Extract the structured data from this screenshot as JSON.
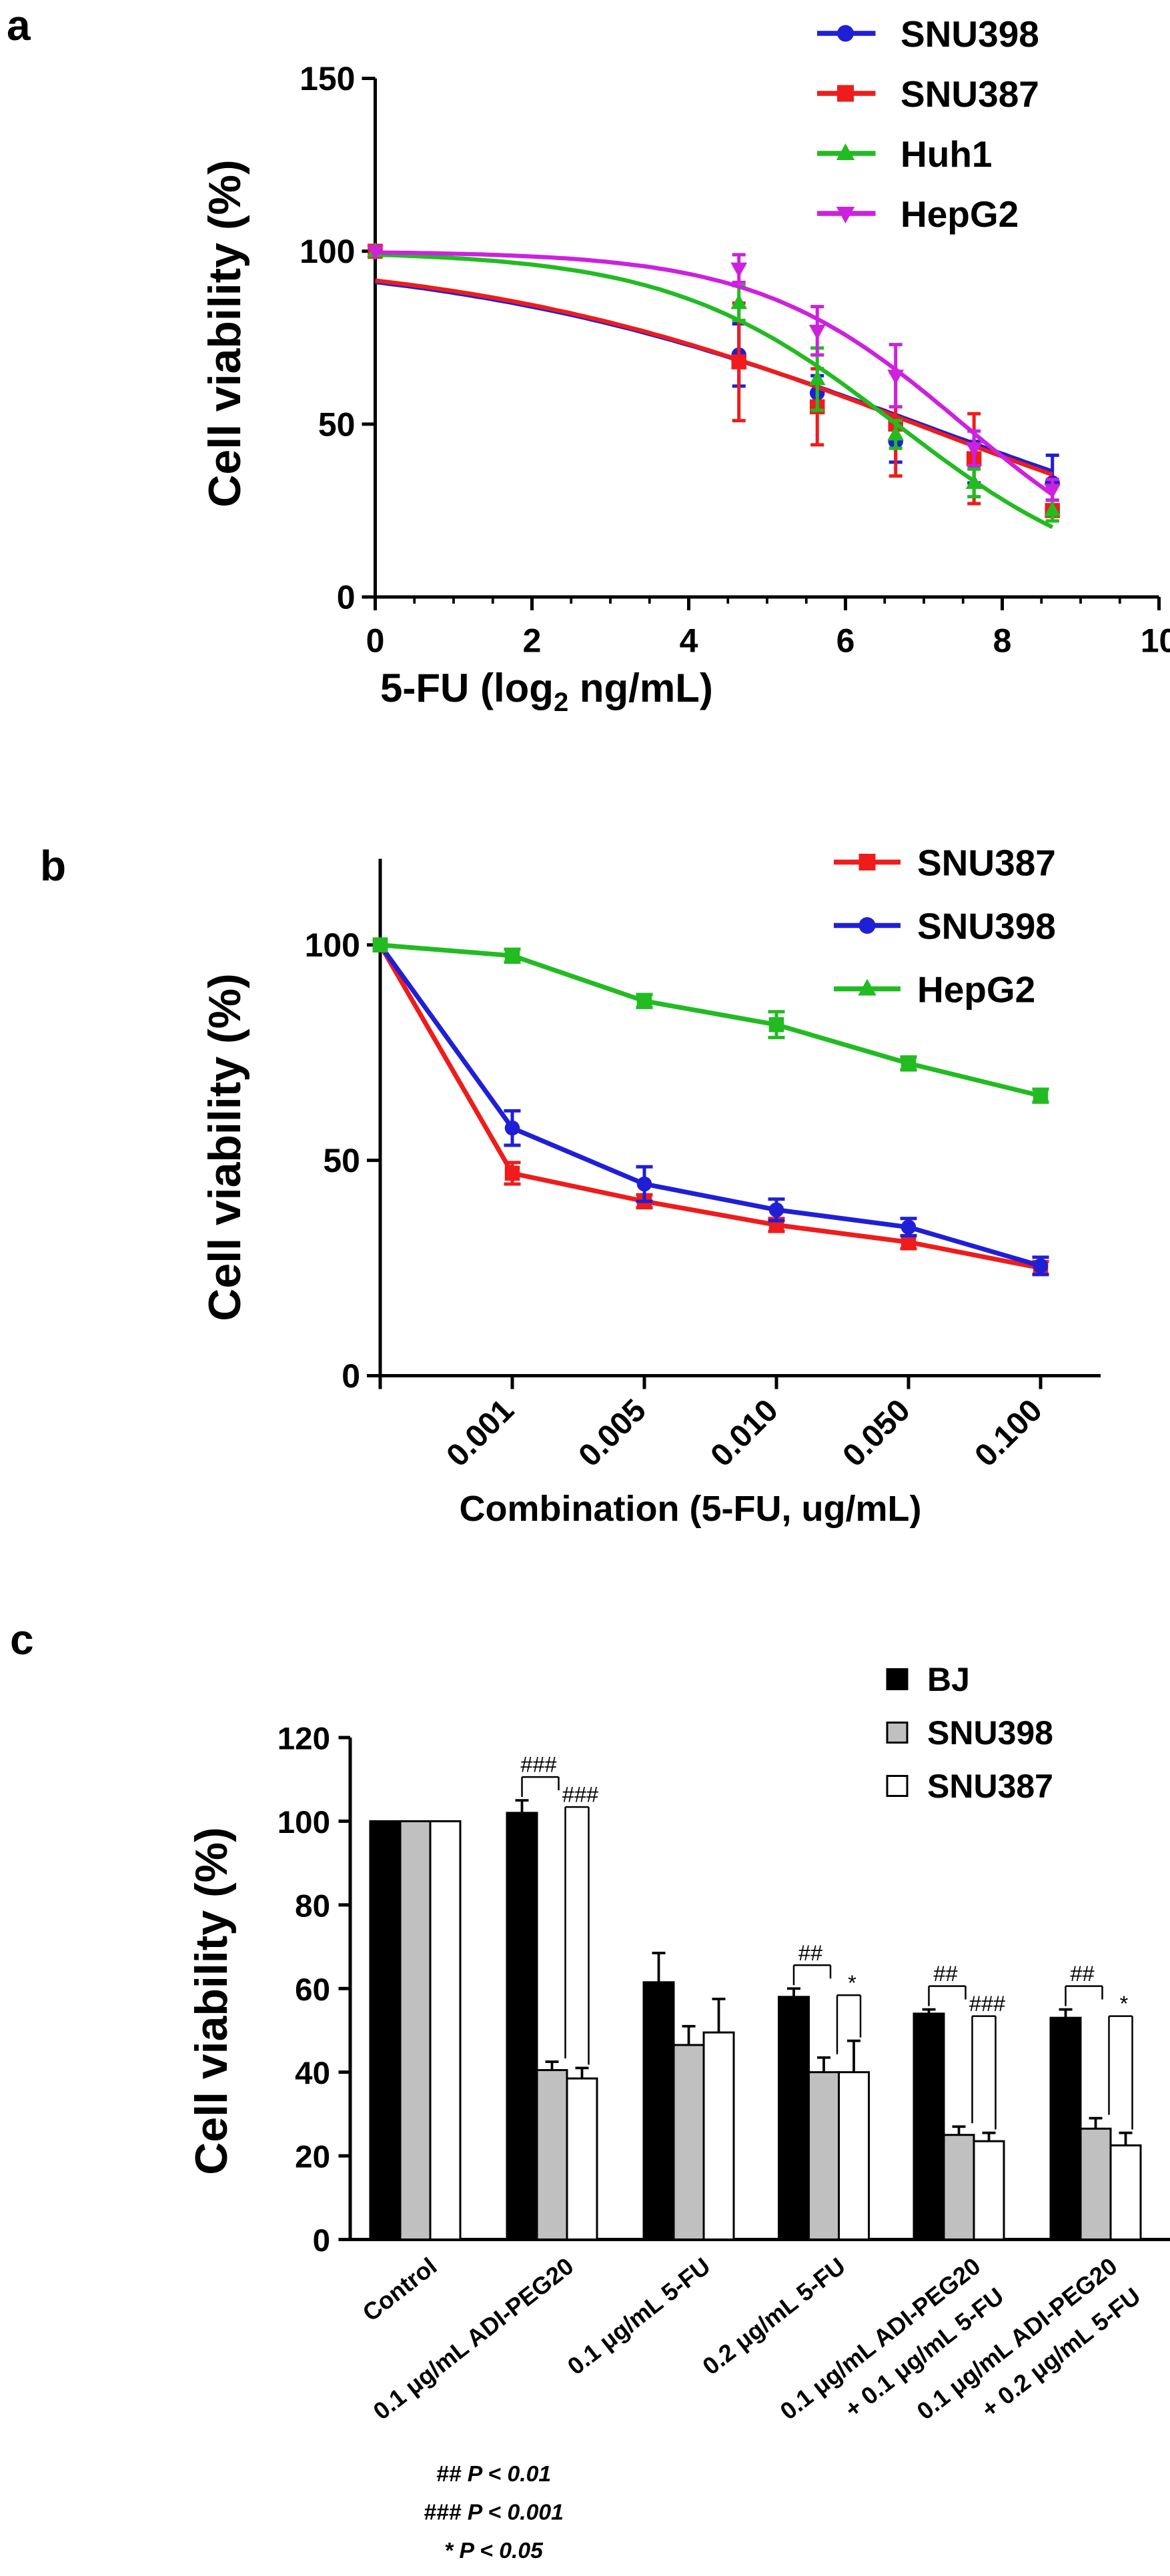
{
  "colors": {
    "SNU398": "#1f1fd6",
    "SNU387": "#ee1c1c",
    "Huh1": "#22bb22",
    "HepG2_a": "#cc22dd",
    "HepG2_b": "#22bb22",
    "BJ": "#000000",
    "SNU398_bar": "#c0c0c0",
    "SNU387_bar": "#ffffff"
  },
  "chart_data": [
    {
      "panel": "a",
      "type": "line",
      "xlabel_main": "5-FU (log",
      "xlabel_sub": "2",
      "xlabel_end": " ng/mL)",
      "ylabel": "Cell viability (%)",
      "xlim": [
        0,
        10
      ],
      "ylim": [
        0,
        150
      ],
      "xticks": [
        "0",
        "2",
        "4",
        "6",
        "8",
        "10"
      ],
      "yticks": [
        "0",
        "50",
        "100",
        "150"
      ],
      "series": [
        {
          "name": "SNU398",
          "marker": "circle",
          "x": [
            0,
            4.64,
            5.64,
            6.64,
            7.64,
            8.64
          ],
          "y": [
            100,
            70,
            59,
            45,
            39,
            33
          ],
          "err": [
            0,
            9,
            5,
            6,
            6,
            8
          ],
          "fit": {
            "top": 100,
            "bottom": 0,
            "ec50": 6.96,
            "hill": 0.145
          }
        },
        {
          "name": "SNU387",
          "marker": "square",
          "x": [
            0,
            4.64,
            5.64,
            6.64,
            7.64,
            8.64
          ],
          "y": [
            100,
            68,
            55,
            50,
            40,
            25
          ],
          "err": [
            0,
            17,
            11,
            15,
            13,
            3
          ],
          "fit": {
            "top": 100,
            "bottom": 0,
            "ec50": 6.9,
            "hill": 0.15
          }
        },
        {
          "name": "Huh1",
          "marker": "triangle",
          "x": [
            0,
            4.64,
            5.64,
            6.64,
            7.64,
            8.64
          ],
          "y": [
            100,
            85,
            63,
            47,
            33,
            25
          ],
          "err": [
            0,
            5,
            9,
            4,
            4,
            3
          ],
          "fit": {
            "top": 100,
            "bottom": 0,
            "ec50": 6.65,
            "hill": 0.3
          }
        },
        {
          "name": "HepG2",
          "marker": "triangle-down",
          "x": [
            0,
            4.64,
            5.64,
            6.64,
            7.64,
            8.64
          ],
          "y": [
            100,
            95,
            77,
            64,
            43,
            31
          ],
          "err": [
            0,
            4,
            7,
            9,
            5,
            3
          ],
          "fit": {
            "top": 100,
            "bottom": 0,
            "ec50": 7.5,
            "hill": 0.33
          }
        }
      ]
    },
    {
      "panel": "b",
      "type": "line",
      "xlabel": "Combination (5-FU, ug/mL)",
      "ylabel": "Cell viability (%)",
      "categories": [
        "",
        "0.001",
        "0.005",
        "0.010",
        "0.050",
        "0.100"
      ],
      "ylim": [
        0,
        120
      ],
      "yticks": [
        "0",
        "50",
        "100"
      ],
      "series": [
        {
          "name": "SNU387",
          "marker": "square",
          "values": [
            100,
            47,
            40.5,
            35,
            31,
            25
          ],
          "err": [
            0,
            2.5,
            1.5,
            1.5,
            1.5,
            1.5
          ]
        },
        {
          "name": "SNU398",
          "marker": "circle",
          "values": [
            100,
            57.5,
            44.5,
            38.5,
            34.5,
            25.5
          ],
          "err": [
            0,
            4,
            4,
            2.5,
            2,
            2
          ]
        },
        {
          "name": "HepG2",
          "marker": "square",
          "values": [
            100,
            97.5,
            87,
            81.5,
            72.5,
            65
          ],
          "err": [
            0,
            1.5,
            1.5,
            3,
            1.5,
            1.5
          ]
        }
      ]
    },
    {
      "panel": "c",
      "type": "bar",
      "ylabel": "Cell viability (%)",
      "ylim": [
        0,
        120
      ],
      "yticks": [
        "0",
        "20",
        "40",
        "60",
        "80",
        "100",
        "120"
      ],
      "categories": [
        [
          "Control"
        ],
        [
          "0.1 μg/mL ADI-PEG20"
        ],
        [
          "0.1 μg/mL 5-FU"
        ],
        [
          "0.2 μg/mL 5-FU"
        ],
        [
          "0.1 μg/mL ADI-PEG20",
          "+ 0.1 μg/mL 5-FU"
        ],
        [
          "0.1 μg/mL ADI-PEG20",
          "+ 0.2 μg/mL 5-FU"
        ]
      ],
      "series": [
        {
          "name": "BJ",
          "values": [
            100,
            102,
            61.5,
            58,
            54,
            53
          ],
          "err": [
            0,
            3,
            7,
            2,
            1,
            2
          ]
        },
        {
          "name": "SNU398",
          "values": [
            100,
            40.5,
            46.5,
            40,
            25,
            26.5
          ],
          "err": [
            0,
            2,
            4.5,
            3.5,
            2,
            2.5
          ]
        },
        {
          "name": "SNU387",
          "values": [
            100,
            38.5,
            49.5,
            40,
            23.5,
            22.5
          ],
          "err": [
            0,
            2.5,
            8,
            7.5,
            2,
            3
          ]
        }
      ],
      "significance": [
        {
          "group": 1,
          "high": "###",
          "low": "###"
        },
        {
          "group": 3,
          "high": "##",
          "low": "*"
        },
        {
          "group": 4,
          "high": "##",
          "low": "###"
        },
        {
          "group": 5,
          "high": "##",
          "low": "*"
        }
      ],
      "footnotes": [
        "## P < 0.01",
        "### P < 0.001",
        "* P < 0.05"
      ]
    }
  ]
}
